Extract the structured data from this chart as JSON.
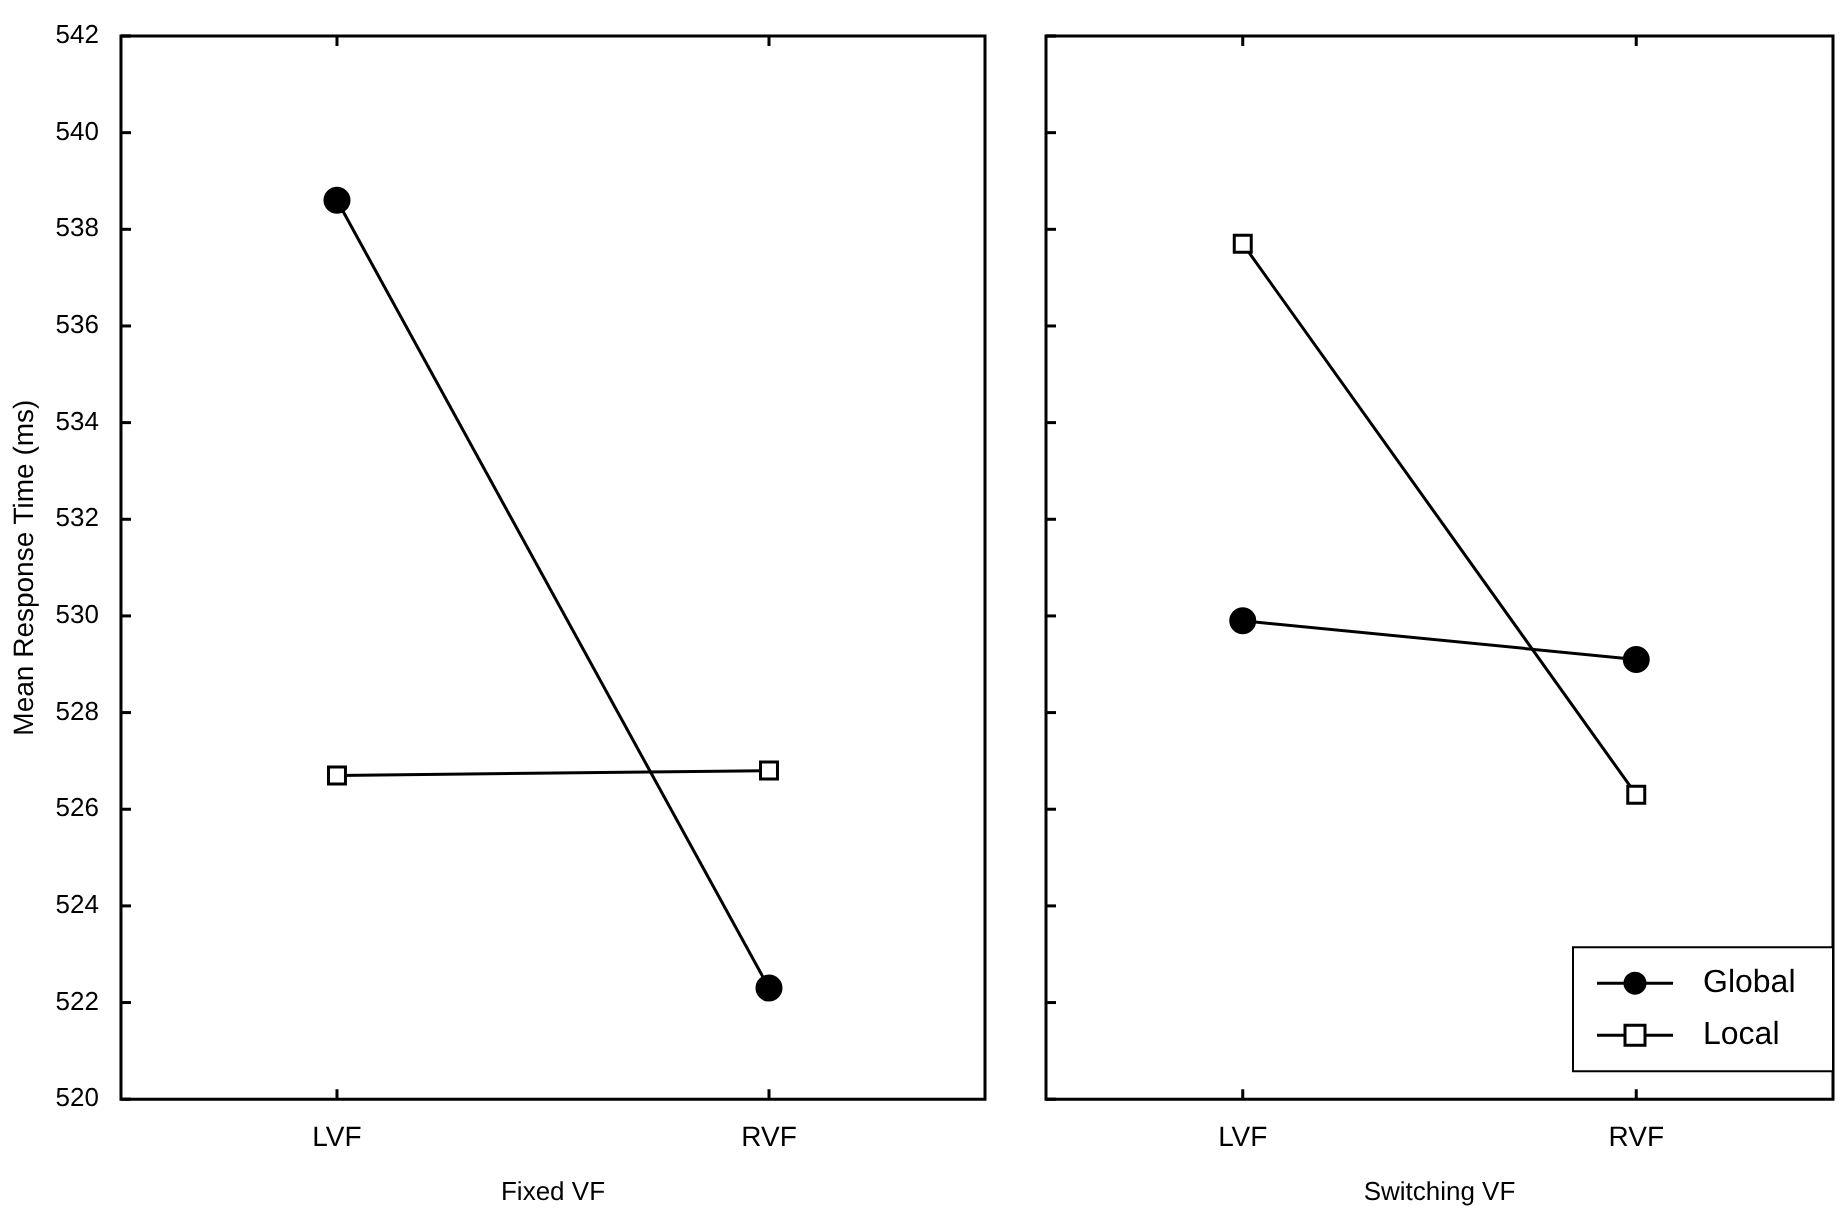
{
  "chart_data": [
    {
      "type": "line",
      "xlabel": "Fixed VF",
      "ylabel": "Mean Response Time (ms)",
      "categories": [
        "LVF",
        "RVF"
      ],
      "ylim": [
        520,
        542
      ],
      "yticks": [
        520,
        522,
        524,
        526,
        528,
        530,
        532,
        534,
        536,
        538,
        540,
        542
      ],
      "grid": false,
      "legend": false,
      "series": [
        {
          "color": "#000000",
          "marker": "circle",
          "values": [
            538.6,
            522.3
          ]
        },
        {
          "color": "#000000",
          "marker": "square",
          "values": [
            526.7,
            526.8
          ]
        }
      ]
    },
    {
      "type": "line",
      "xlabel": "Switching VF",
      "categories": [
        "LVF",
        "RVF"
      ],
      "ylim": [
        520,
        542
      ],
      "yticks": [
        520,
        522,
        524,
        526,
        528,
        530,
        532,
        534,
        536,
        538,
        540,
        542
      ],
      "grid": false,
      "legend": "bottom right",
      "tick_labels": "x",
      "series": [
        {
          "name": "Global",
          "color": "#000000",
          "marker": "circle",
          "values": [
            529.9,
            529.1
          ]
        },
        {
          "name": "Local",
          "color": "#000000",
          "marker": "square",
          "values": [
            537.7,
            526.3
          ]
        }
      ]
    }
  ]
}
